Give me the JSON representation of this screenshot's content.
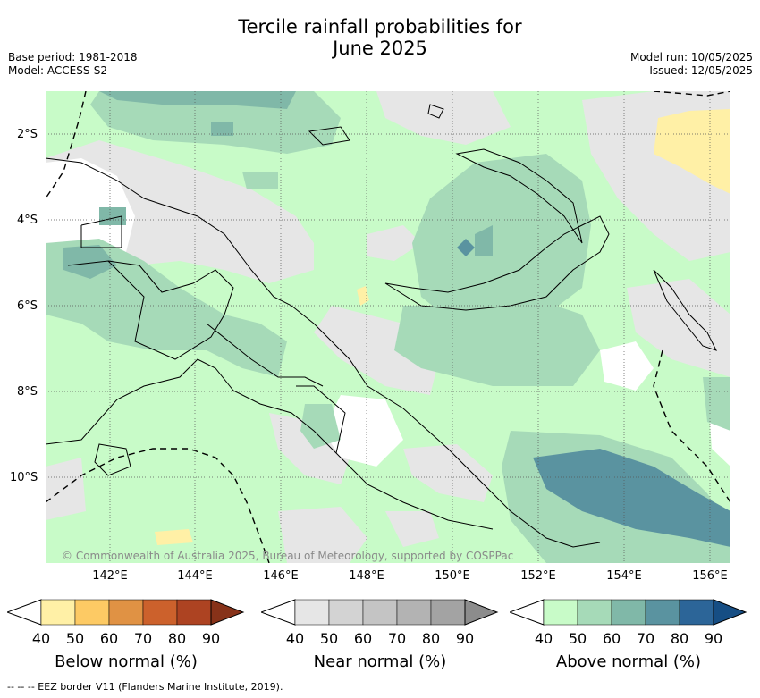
{
  "title_line1": "Tercile rainfall probabilities for",
  "title_line2": "June 2025",
  "meta_left": {
    "base_period": "Base period: 1981-2018",
    "model": "Model: ACCESS-S2"
  },
  "meta_right": {
    "model_run": "Model run: 10/05/2025",
    "issued": "Issued: 12/05/2025"
  },
  "lat_labels": [
    "2°S",
    "4°S",
    "6°S",
    "8°S",
    "10°S"
  ],
  "lon_labels": [
    "142°E",
    "144°E",
    "146°E",
    "148°E",
    "150°E",
    "152°E",
    "154°E",
    "156°E"
  ],
  "copyright": "© Commonwealth of Australia 2025, Bureau of Meteorology, supported by COSPPac",
  "colorbars": [
    {
      "title": "Below normal (%)",
      "ticks": [
        "40",
        "50",
        "60",
        "70",
        "80",
        "90"
      ],
      "colors": [
        "#fff0a6",
        "#fdca64",
        "#e09244",
        "#cc612c",
        "#ad4322",
        "#873219"
      ]
    },
    {
      "title": "Near normal (%)",
      "ticks": [
        "40",
        "50",
        "60",
        "70",
        "80",
        "90"
      ],
      "colors": [
        "#e6e6e6",
        "#d3d3d3",
        "#c4c4c4",
        "#b3b3b3",
        "#a3a3a3",
        "#8c8c8c"
      ]
    },
    {
      "title": "Above normal (%)",
      "ticks": [
        "40",
        "50",
        "60",
        "70",
        "80",
        "90"
      ],
      "colors": [
        "#c8fbc8",
        "#a6dab8",
        "#80b8a8",
        "#5a93a0",
        "#2c6598",
        "#164e84"
      ]
    }
  ],
  "eez_note": "-- -- -- EEZ border V11 (Flanders Marine Institute, 2019)."
}
